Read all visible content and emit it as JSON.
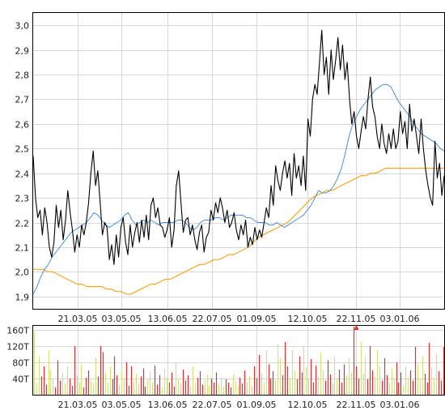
{
  "chart_data": [
    {
      "type": "line",
      "title": "",
      "xlabel": "",
      "ylabel": "",
      "ylim": [
        1.85,
        3.05
      ],
      "grid": true,
      "x_tick_labels": [
        "21.03.05",
        "03.05.05",
        "13.06.05",
        "22.07.05",
        "01.09.05",
        "12.10.05",
        "22.11.05",
        "03.01.06"
      ],
      "y_tick_labels": [
        "1,9",
        "2,0",
        "2,1",
        "2,2",
        "2,3",
        "2,4",
        "2,5",
        "2,6",
        "2,7",
        "2,8",
        "2,9",
        "3,0"
      ],
      "y_ticks": [
        1.9,
        2.0,
        2.1,
        2.2,
        2.3,
        2.4,
        2.5,
        2.6,
        2.7,
        2.8,
        2.9,
        3.0
      ],
      "series": [
        {
          "color": "#000000",
          "values": [
            2.47,
            2.3,
            2.22,
            2.25,
            2.15,
            2.26,
            2.2,
            2.1,
            2.06,
            2.12,
            2.27,
            2.18,
            2.25,
            2.13,
            2.21,
            2.33,
            2.24,
            2.17,
            2.08,
            2.15,
            2.1,
            2.19,
            2.15,
            2.2,
            2.28,
            2.4,
            2.49,
            2.35,
            2.41,
            2.28,
            2.15,
            2.2,
            2.18,
            2.05,
            2.11,
            2.03,
            2.15,
            2.06,
            2.18,
            2.22,
            2.12,
            2.07,
            2.19,
            2.1,
            2.16,
            2.2,
            2.12,
            2.21,
            2.14,
            2.23,
            2.13,
            2.27,
            2.3,
            2.22,
            2.26,
            2.19,
            2.18,
            2.14,
            2.17,
            2.22,
            2.1,
            2.17,
            2.35,
            2.41,
            2.28,
            2.16,
            2.21,
            2.22,
            2.15,
            2.19,
            2.13,
            2.09,
            2.16,
            2.19,
            2.08,
            2.14,
            2.16,
            2.25,
            2.21,
            2.28,
            2.24,
            2.3,
            2.26,
            2.2,
            2.25,
            2.18,
            2.2,
            2.24,
            2.17,
            2.13,
            2.19,
            2.15,
            2.21,
            2.1,
            2.14,
            2.11,
            2.18,
            2.13,
            2.17,
            2.14,
            2.2,
            2.26,
            2.22,
            2.35,
            2.27,
            2.43,
            2.37,
            2.33,
            2.4,
            2.45,
            2.38,
            2.44,
            2.31,
            2.48,
            2.38,
            2.43,
            2.35,
            2.47,
            2.33,
            2.62,
            2.55,
            2.7,
            2.76,
            2.72,
            2.85,
            2.98,
            2.8,
            2.87,
            2.72,
            2.9,
            2.78,
            2.86,
            2.95,
            2.82,
            2.92,
            2.78,
            2.85,
            2.7,
            2.6,
            2.65,
            2.55,
            2.5,
            2.57,
            2.63,
            2.58,
            2.7,
            2.79,
            2.67,
            2.63,
            2.55,
            2.5,
            2.6,
            2.52,
            2.48,
            2.56,
            2.5,
            2.58,
            2.5,
            2.53,
            2.65,
            2.56,
            2.61,
            2.5,
            2.68,
            2.57,
            2.62,
            2.55,
            2.48,
            2.62,
            2.5,
            2.41,
            2.35,
            2.3,
            2.27,
            2.53,
            2.38,
            2.44,
            2.31,
            2.39
          ]
        },
        {
          "color": "#4a90d9",
          "values": [
            1.91,
            1.94,
            1.98,
            2.01,
            2.03,
            2.06,
            2.08,
            2.1,
            2.12,
            2.14,
            2.16,
            2.17,
            2.18,
            2.19,
            2.2,
            2.22,
            2.24,
            2.23,
            2.21,
            2.19,
            2.18,
            2.19,
            2.2,
            2.21,
            2.23,
            2.24,
            2.21,
            2.19,
            2.2,
            2.21,
            2.2,
            2.21,
            2.2,
            2.19,
            2.2,
            2.2,
            2.2,
            2.2,
            2.21,
            2.21,
            2.2,
            2.18,
            2.17,
            2.18,
            2.2,
            2.21,
            2.21,
            2.21,
            2.22,
            2.22,
            2.21,
            2.22,
            2.23,
            2.23,
            2.23,
            2.23,
            2.22,
            2.22,
            2.21,
            2.2,
            2.2,
            2.2,
            2.19,
            2.19,
            2.2,
            2.19,
            2.18,
            2.19,
            2.2,
            2.21,
            2.22,
            2.23,
            2.25,
            2.27,
            2.3,
            2.33,
            2.32,
            2.32,
            2.33,
            2.35,
            2.38,
            2.42,
            2.48,
            2.55,
            2.6,
            2.63,
            2.66,
            2.68,
            2.7,
            2.72,
            2.74,
            2.75,
            2.76,
            2.76,
            2.75,
            2.72,
            2.69,
            2.67,
            2.65,
            2.63,
            2.6,
            2.58,
            2.56,
            2.55,
            2.54,
            2.53,
            2.52,
            2.5,
            2.49
          ]
        },
        {
          "color": "#f5a623",
          "values": [
            2.01,
            2.01,
            2.01,
            2.0,
            2.0,
            1.99,
            1.98,
            1.97,
            1.96,
            1.95,
            1.95,
            1.94,
            1.94,
            1.94,
            1.94,
            1.93,
            1.93,
            1.92,
            1.92,
            1.91,
            1.91,
            1.92,
            1.93,
            1.94,
            1.95,
            1.95,
            1.96,
            1.97,
            1.97,
            1.98,
            1.99,
            2.0,
            2.01,
            2.02,
            2.03,
            2.03,
            2.04,
            2.05,
            2.05,
            2.06,
            2.07,
            2.07,
            2.08,
            2.09,
            2.1,
            2.12,
            2.14,
            2.15,
            2.16,
            2.17,
            2.18,
            2.19,
            2.2,
            2.22,
            2.24,
            2.26,
            2.28,
            2.3,
            2.31,
            2.32,
            2.33,
            2.33,
            2.34,
            2.35,
            2.36,
            2.37,
            2.38,
            2.39,
            2.39,
            2.4,
            2.4,
            2.41,
            2.42,
            2.42,
            2.42,
            2.42,
            2.42,
            2.42,
            2.42,
            2.42,
            2.42,
            2.42,
            2.42,
            2.42,
            2.42
          ]
        }
      ]
    },
    {
      "type": "bar",
      "title": "",
      "xlabel": "",
      "ylabel": "",
      "ylim": [
        0,
        170
      ],
      "grid": true,
      "x_tick_labels": [
        "21.03.05",
        "03.05.05",
        "13.06.05",
        "22.07.05",
        "01.09.05",
        "12.10.05",
        "22.11.05",
        "03.01.06"
      ],
      "y_tick_labels": [
        "40T",
        "80T",
        "120T",
        "160T"
      ],
      "y_ticks": [
        40,
        80,
        120,
        160
      ],
      "colors": [
        "#d4e07a",
        "#e03030"
      ],
      "arrow_index": 136,
      "values": [
        156,
        30,
        95,
        45,
        70,
        25,
        110,
        60,
        40,
        18,
        85,
        35,
        55,
        28,
        70,
        40,
        22,
        120,
        48,
        30,
        75,
        18,
        42,
        60,
        35,
        28,
        90,
        45,
        120,
        105,
        55,
        30,
        70,
        38,
        95,
        48,
        25,
        60,
        42,
        80,
        22,
        70,
        35,
        52,
        28,
        45,
        65,
        20,
        38,
        58,
        30,
        72,
        25,
        48,
        18,
        65,
        42,
        30,
        55,
        20,
        78,
        40,
        28,
        62,
        35,
        48,
        22,
        70,
        30,
        42,
        58,
        25,
        36,
        50,
        22,
        40,
        30,
        55,
        26,
        44,
        20,
        38,
        30,
        18,
        50,
        34,
        24,
        42,
        28,
        60,
        32,
        46,
        22,
        70,
        40,
        98,
        52,
        30,
        110,
        75,
        40,
        58,
        35,
        125,
        90,
        48,
        130,
        70,
        42,
        110,
        60,
        38,
        95,
        55,
        120,
        68,
        40,
        88,
        30,
        72,
        45,
        105,
        60,
        35,
        85,
        50,
        28,
        95,
        40,
        62,
        30,
        75,
        48,
        90,
        55,
        168,
        70,
        40,
        130,
        52,
        95,
        38,
        120,
        60,
        44,
        110,
        70,
        35,
        90,
        48,
        28,
        65,
        40,
        80,
        30,
        55,
        22,
        70,
        42,
        60,
        35,
        118,
        75,
        40,
        95,
        52,
        30,
        128,
        68,
        42,
        100,
        58,
        35,
        118
      ]
    }
  ]
}
